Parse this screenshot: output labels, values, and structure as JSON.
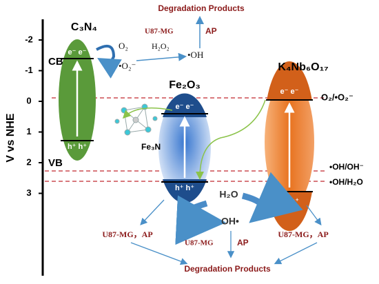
{
  "axis": {
    "label": "V vs NHE",
    "ticks": [
      -2,
      -1,
      0,
      1,
      2,
      3
    ],
    "cb": "CB",
    "vb": "VB"
  },
  "c3n4": {
    "label": "C₃N₄",
    "electrons": "e⁻ e⁻",
    "holes": "h⁺ h⁺"
  },
  "fe2o3": {
    "label": "Fe₂O₃",
    "electrons": "e⁻ e⁻",
    "holes": "h⁺ h⁺"
  },
  "k4nb6o17": {
    "label": "K₄Nb₆O₁₇",
    "electrons": "e⁻ e⁻",
    "holes": "h⁺ h⁺"
  },
  "fe3n": "Fe₃N",
  "potentials": {
    "o2": "O₂/•O₂⁻",
    "oh_oh": "•OH/OH⁻",
    "oh_h2o": "•OH/H₂O"
  },
  "top": {
    "products": "Degradation Products",
    "cell": "U87-MG",
    "ap": "AP",
    "o2": "O₂",
    "superoxide": "•O₂⁻",
    "h2o2": "H₂O₂",
    "oh": "•OH"
  },
  "bottom": {
    "h2o": "H₂O",
    "oh": "OH•",
    "left": "U87-MG，AP",
    "mid_cell": "U87-MG",
    "mid_ap": "AP",
    "right": "U87-MG，AP",
    "products": "Degradation Products"
  }
}
